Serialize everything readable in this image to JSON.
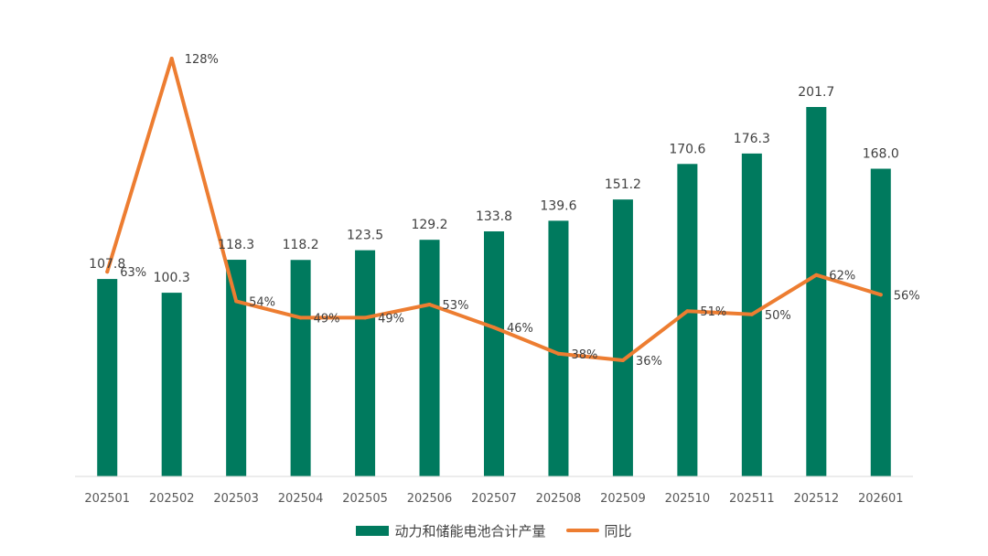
{
  "chart_data": {
    "type": "bar",
    "categories": [
      "202501",
      "202502",
      "202503",
      "202504",
      "202505",
      "202506",
      "202507",
      "202508",
      "202509",
      "202510",
      "202511",
      "202512",
      "202601"
    ],
    "series": [
      {
        "name": "动力和储能电池合计产量",
        "type": "bar",
        "color": "#007A5E",
        "values": [
          107.8,
          100.3,
          118.3,
          118.2,
          123.5,
          129.2,
          133.8,
          139.6,
          151.2,
          170.6,
          176.3,
          201.7,
          168.0
        ],
        "labels": [
          "107.8",
          "100.3",
          "118.3",
          "118.2",
          "123.5",
          "129.2",
          "133.8",
          "139.6",
          "151.2",
          "170.6",
          "176.3",
          "201.7",
          "168.0"
        ]
      },
      {
        "name": "同比",
        "type": "line",
        "color": "#ED7D31",
        "values": [
          63,
          128,
          54,
          49,
          49,
          53,
          46,
          38,
          36,
          51,
          50,
          62,
          56
        ],
        "labels": [
          "63%",
          "128%",
          "54%",
          "49%",
          "49%",
          "53%",
          "46%",
          "38%",
          "36%",
          "51%",
          "50%",
          "62%",
          "56%"
        ]
      }
    ],
    "ylim_bar": [
      0,
      260
    ],
    "ylim_line": [
      0,
      140
    ],
    "grid": false,
    "legend_position": "bottom-center"
  }
}
